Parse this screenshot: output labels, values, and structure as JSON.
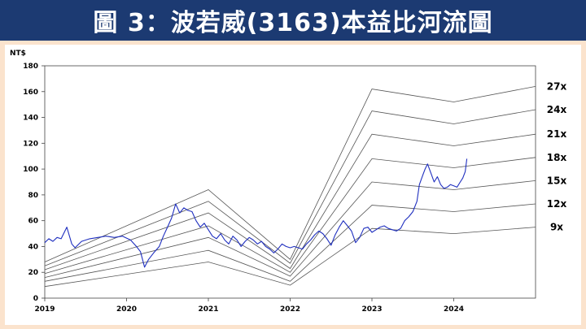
{
  "title": "圖 3：波若威(3163)本益比河流圖",
  "chart_data": {
    "type": "line",
    "ylabel": "NT$",
    "ylim": [
      0,
      180
    ],
    "yticks": [
      0,
      20,
      40,
      60,
      80,
      100,
      120,
      140,
      160,
      180
    ],
    "xlim": [
      2019.0,
      2025.0
    ],
    "xticks": [
      "2019",
      "2020",
      "2021",
      "2022",
      "2023",
      "2024"
    ],
    "grid": false,
    "colors": {
      "price": "#1f2fbf",
      "bands": "#555555"
    },
    "bands": [
      {
        "name": "27x",
        "points": [
          [
            2019.0,
            28
          ],
          [
            2021.0,
            84
          ],
          [
            2022.0,
            30
          ],
          [
            2023.0,
            162
          ],
          [
            2024.0,
            152
          ],
          [
            2025.0,
            164
          ]
        ]
      },
      {
        "name": "24x",
        "points": [
          [
            2019.0,
            25
          ],
          [
            2021.0,
            75
          ],
          [
            2022.0,
            27
          ],
          [
            2023.0,
            145
          ],
          [
            2024.0,
            135
          ],
          [
            2025.0,
            146
          ]
        ]
      },
      {
        "name": "21x",
        "points": [
          [
            2019.0,
            22
          ],
          [
            2021.0,
            66
          ],
          [
            2022.0,
            23
          ],
          [
            2023.0,
            127
          ],
          [
            2024.0,
            118
          ],
          [
            2025.0,
            127
          ]
        ]
      },
      {
        "name": "18x",
        "points": [
          [
            2019.0,
            19
          ],
          [
            2021.0,
            56
          ],
          [
            2022.0,
            20
          ],
          [
            2023.0,
            108
          ],
          [
            2024.0,
            101
          ],
          [
            2025.0,
            109
          ]
        ]
      },
      {
        "name": "15x",
        "points": [
          [
            2019.0,
            16
          ],
          [
            2021.0,
            47
          ],
          [
            2022.0,
            17
          ],
          [
            2023.0,
            90
          ],
          [
            2024.0,
            84
          ],
          [
            2025.0,
            91
          ]
        ]
      },
      {
        "name": "12x",
        "points": [
          [
            2019.0,
            13
          ],
          [
            2021.0,
            37
          ],
          [
            2022.0,
            13
          ],
          [
            2023.0,
            72
          ],
          [
            2024.0,
            67
          ],
          [
            2025.0,
            73
          ]
        ]
      },
      {
        "name": "9x",
        "points": [
          [
            2019.0,
            9
          ],
          [
            2021.0,
            28
          ],
          [
            2022.0,
            10
          ],
          [
            2023.0,
            54
          ],
          [
            2024.0,
            50
          ],
          [
            2025.0,
            55
          ]
        ]
      }
    ],
    "price": [
      [
        2019.0,
        43
      ],
      [
        2019.05,
        46
      ],
      [
        2019.1,
        44
      ],
      [
        2019.15,
        47
      ],
      [
        2019.2,
        46
      ],
      [
        2019.27,
        55
      ],
      [
        2019.33,
        42
      ],
      [
        2019.37,
        39
      ],
      [
        2019.45,
        44
      ],
      [
        2019.55,
        46
      ],
      [
        2019.65,
        47
      ],
      [
        2019.75,
        48
      ],
      [
        2019.85,
        47
      ],
      [
        2019.95,
        48
      ],
      [
        2020.05,
        45
      ],
      [
        2020.12,
        40
      ],
      [
        2020.17,
        36
      ],
      [
        2020.22,
        24
      ],
      [
        2020.27,
        30
      ],
      [
        2020.33,
        35
      ],
      [
        2020.4,
        40
      ],
      [
        2020.45,
        48
      ],
      [
        2020.5,
        55
      ],
      [
        2020.55,
        62
      ],
      [
        2020.6,
        73
      ],
      [
        2020.65,
        66
      ],
      [
        2020.7,
        70
      ],
      [
        2020.75,
        68
      ],
      [
        2020.8,
        67
      ],
      [
        2020.85,
        60
      ],
      [
        2020.9,
        55
      ],
      [
        2020.95,
        58
      ],
      [
        2021.0,
        53
      ],
      [
        2021.05,
        48
      ],
      [
        2021.1,
        46
      ],
      [
        2021.15,
        50
      ],
      [
        2021.2,
        45
      ],
      [
        2021.25,
        42
      ],
      [
        2021.3,
        48
      ],
      [
        2021.35,
        45
      ],
      [
        2021.4,
        40
      ],
      [
        2021.45,
        44
      ],
      [
        2021.5,
        47
      ],
      [
        2021.55,
        45
      ],
      [
        2021.6,
        42
      ],
      [
        2021.65,
        44
      ],
      [
        2021.7,
        40
      ],
      [
        2021.75,
        38
      ],
      [
        2021.8,
        35
      ],
      [
        2021.85,
        38
      ],
      [
        2021.9,
        42
      ],
      [
        2021.95,
        40
      ],
      [
        2022.0,
        39
      ],
      [
        2022.05,
        40
      ],
      [
        2022.1,
        39
      ],
      [
        2022.15,
        38
      ],
      [
        2022.2,
        42
      ],
      [
        2022.25,
        45
      ],
      [
        2022.3,
        49
      ],
      [
        2022.35,
        52
      ],
      [
        2022.4,
        50
      ],
      [
        2022.45,
        46
      ],
      [
        2022.5,
        41
      ],
      [
        2022.55,
        49
      ],
      [
        2022.6,
        55
      ],
      [
        2022.65,
        60
      ],
      [
        2022.7,
        56
      ],
      [
        2022.75,
        52
      ],
      [
        2022.8,
        43
      ],
      [
        2022.85,
        47
      ],
      [
        2022.9,
        54
      ],
      [
        2022.95,
        55
      ],
      [
        2023.0,
        51
      ],
      [
        2023.05,
        53
      ],
      [
        2023.1,
        55
      ],
      [
        2023.15,
        56
      ],
      [
        2023.2,
        54
      ],
      [
        2023.25,
        53
      ],
      [
        2023.3,
        52
      ],
      [
        2023.35,
        54
      ],
      [
        2023.4,
        60
      ],
      [
        2023.45,
        63
      ],
      [
        2023.5,
        67
      ],
      [
        2023.55,
        75
      ],
      [
        2023.58,
        88
      ],
      [
        2023.62,
        95
      ],
      [
        2023.65,
        100
      ],
      [
        2023.68,
        104
      ],
      [
        2023.72,
        97
      ],
      [
        2023.76,
        90
      ],
      [
        2023.8,
        94
      ],
      [
        2023.84,
        88
      ],
      [
        2023.88,
        85
      ],
      [
        2023.92,
        86
      ],
      [
        2023.96,
        88
      ],
      [
        2024.0,
        87
      ],
      [
        2024.04,
        86
      ],
      [
        2024.08,
        90
      ],
      [
        2024.11,
        93
      ],
      [
        2024.14,
        98
      ],
      [
        2024.16,
        108
      ]
    ]
  }
}
